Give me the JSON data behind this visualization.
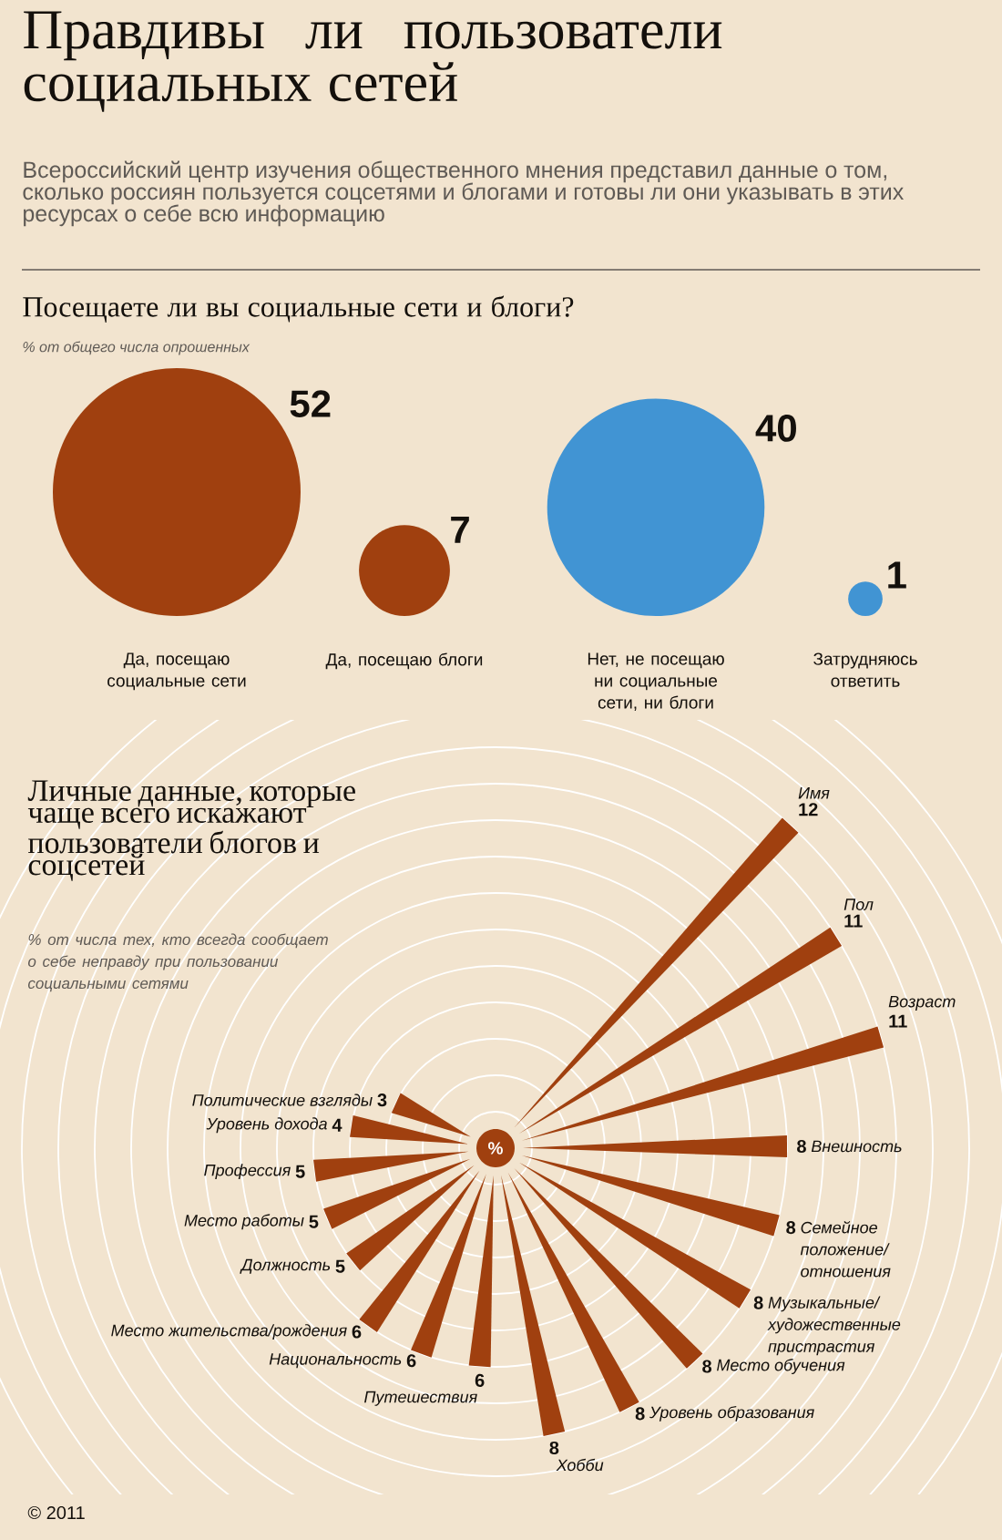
{
  "chart_data": [
    {
      "type": "other",
      "title": "Правдивы ли пользователи социальных сетей",
      "subtitle": "Всероссийский центр изучения общественного мнения представил данные о том, сколько россиян пользуется соцсетями и блогами и готовы ли они указывать в этих ресурсах о себе всю информацию",
      "annotations": [
        "Посещаете ли вы социальные сети и блоги?",
        "% от общего числа опрошенных"
      ],
      "categories": [
        "Да, посещаю социальные сети",
        "Да, посещаю блоги",
        "Нет, не посещаю ни социальные сети, ни блоги",
        "Затрудняюсь ответить"
      ],
      "values": [
        52,
        7,
        40,
        1
      ],
      "colors": [
        "#a0400f",
        "#a0400f",
        "#4194d3",
        "#4194d3"
      ],
      "data_labels": true
    },
    {
      "type": "other",
      "title": "Личные данные, которые чаще всего искажают пользователи блогов и соцсетей",
      "subtitle": "% от числа тех, кто всегда сообщает о себе неправду при пользовании социальными сетями",
      "annotations": [
        "%",
        "© 2011"
      ],
      "categories": [
        "Имя",
        "Пол",
        "Возраст",
        "Внешность",
        "Семейное положение/ отношения",
        "Музыкальные/ художественные пристрастия",
        "Место обучения",
        "Уровень образования",
        "Хобби",
        "Путешествия",
        "Национальность",
        "Место жительства/рождения",
        "Должность",
        "Место работы",
        "Профессия",
        "Уровень дохода",
        "Политические взгляды"
      ],
      "values": [
        12,
        11,
        11,
        8,
        8,
        8,
        8,
        8,
        8,
        6,
        6,
        6,
        5,
        5,
        5,
        4,
        3
      ],
      "color": "#a0400f",
      "data_labels": true
    }
  ]
}
